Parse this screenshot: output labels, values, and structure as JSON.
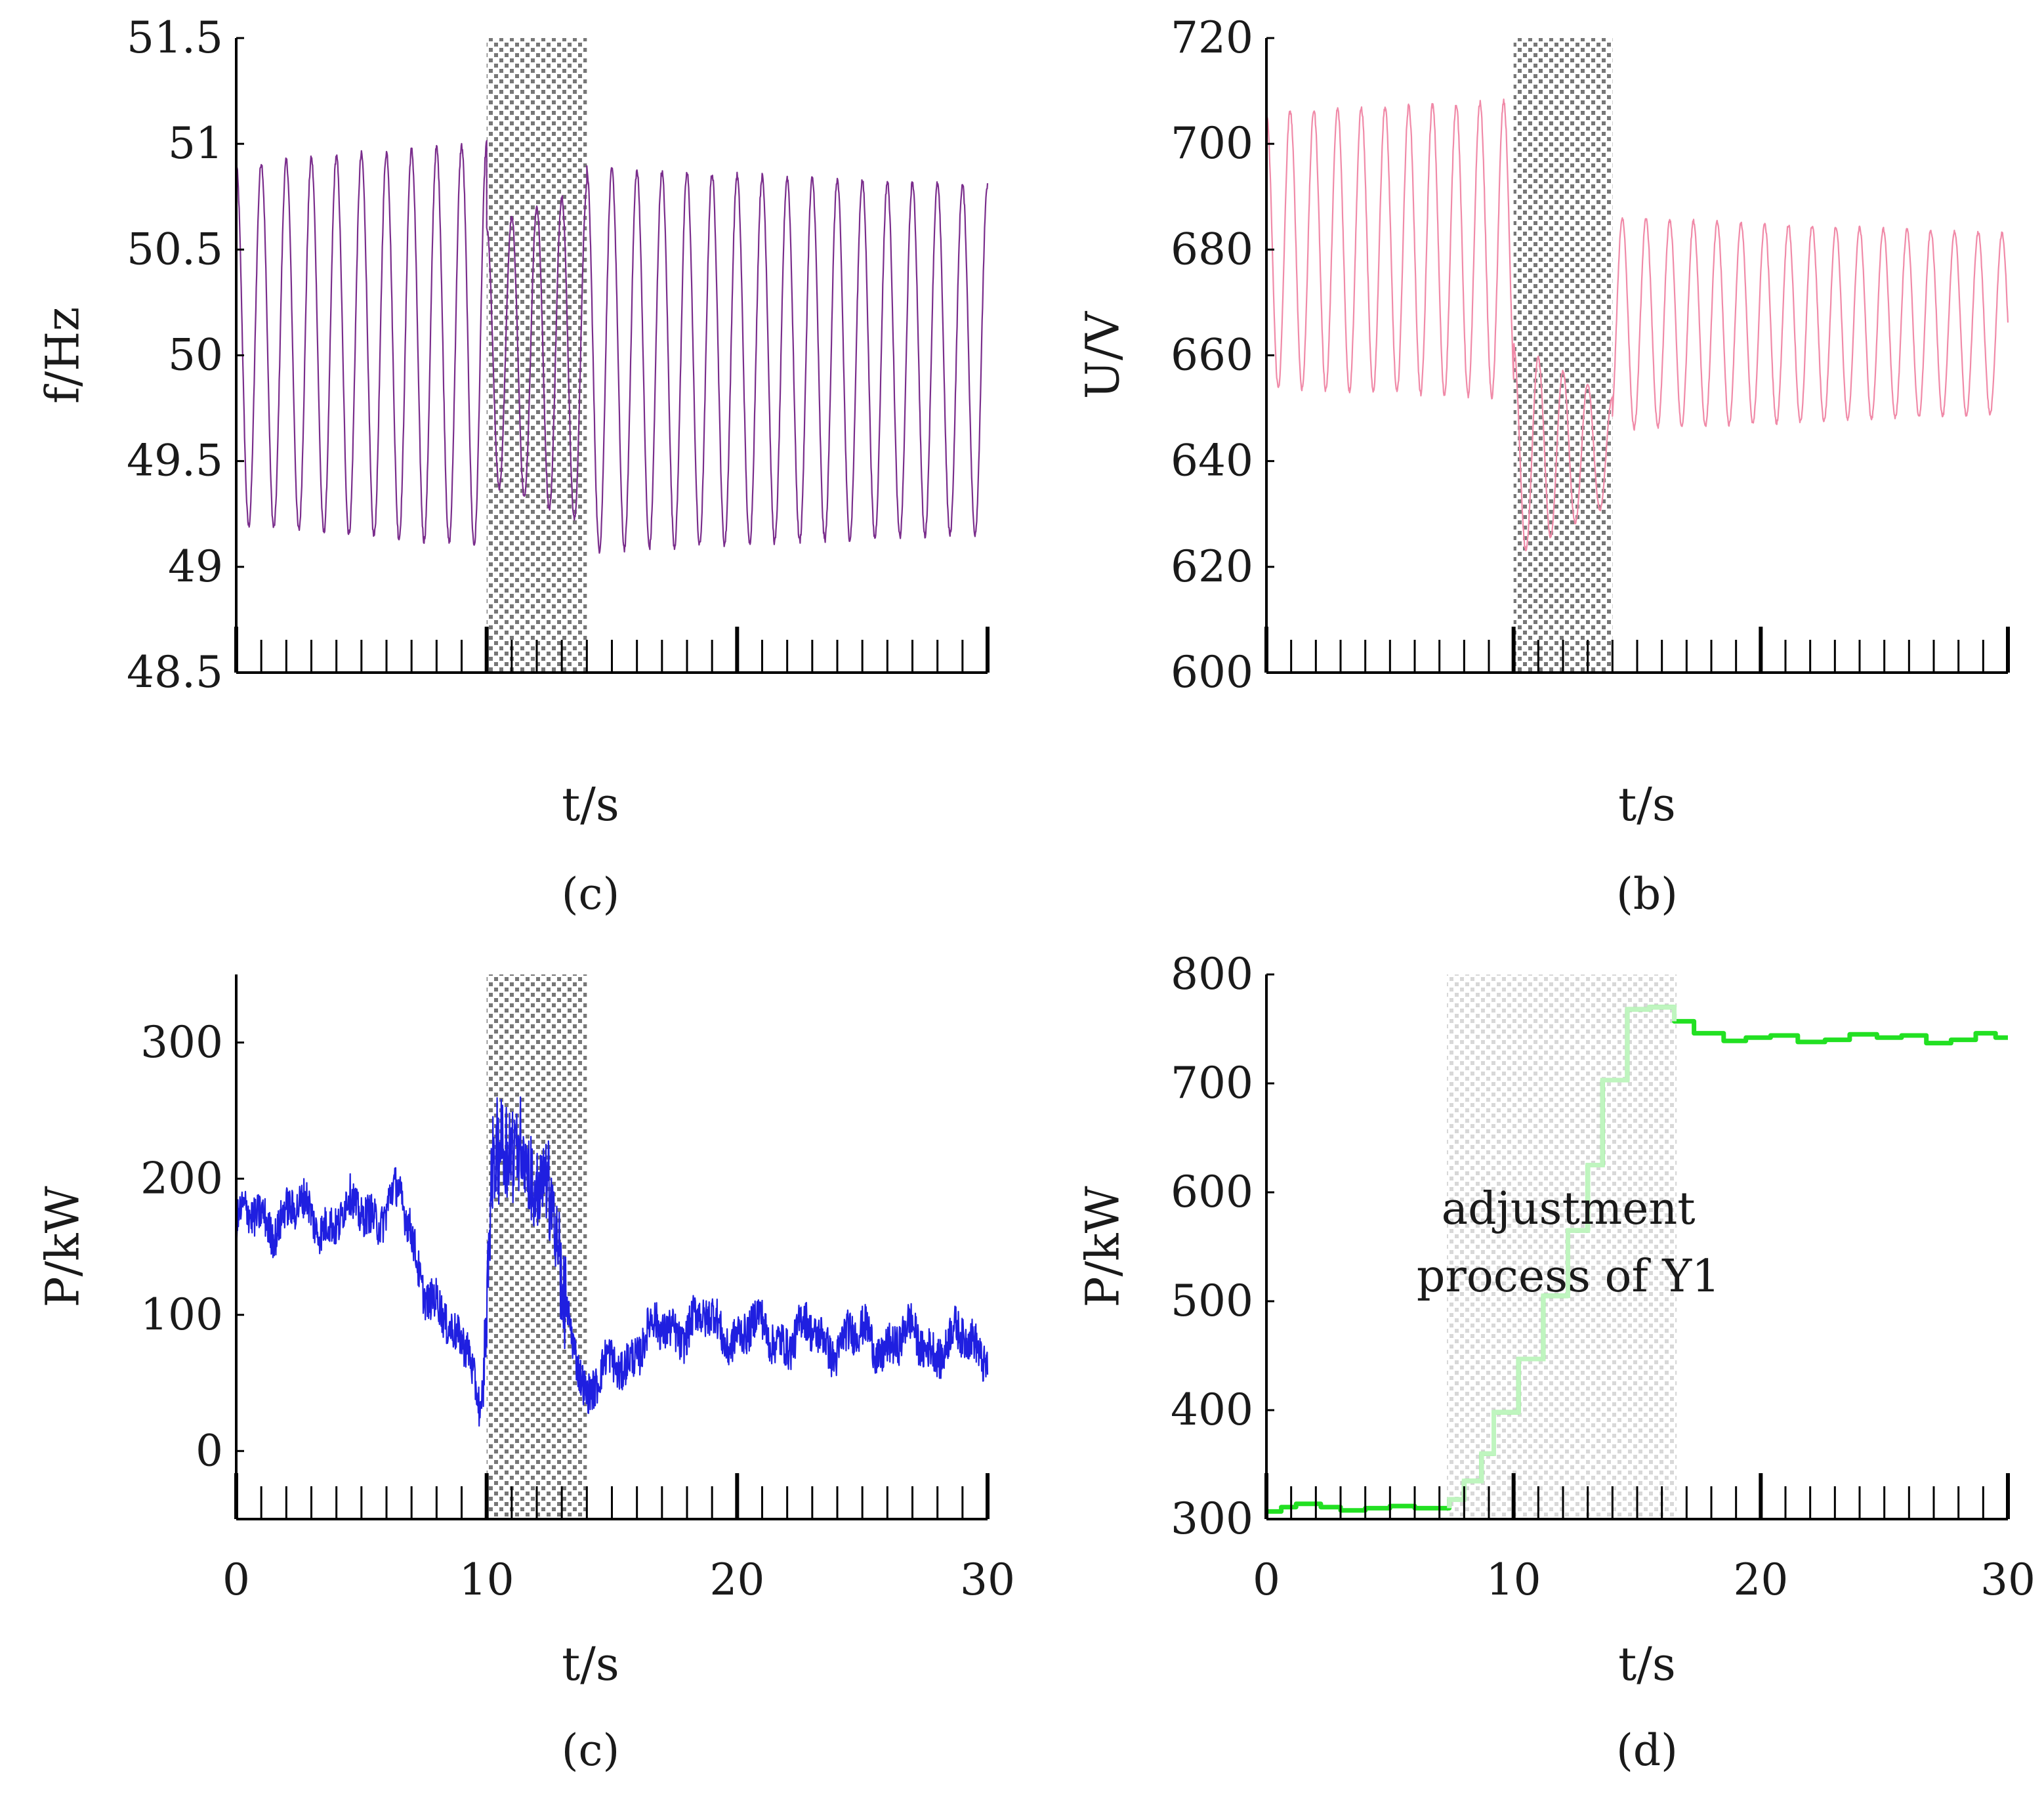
{
  "chart_data": [
    {
      "id": "a",
      "type": "line",
      "caption": "(c)",
      "xlabel": "t/s",
      "ylabel": "f/Hz",
      "xlim": [
        0,
        30
      ],
      "ylim": [
        48.5,
        51.5
      ],
      "yticks": [
        "48.5",
        "49",
        "49.5",
        "50",
        "50.5",
        "51",
        "51.5"
      ],
      "xticks": [],
      "shade": [
        10,
        14
      ],
      "color": "#7a2d8c",
      "series": [
        {
          "name": "frequency",
          "segments": [
            {
              "t0": 0,
              "t1": 10,
              "center": 50.05,
              "amp": [
                0.85,
                0.95
              ],
              "period": 1.0
            },
            {
              "t0": 10,
              "t1": 14,
              "center": 50.0,
              "amp": [
                0.6,
                0.8
              ],
              "period": 1.0
            },
            {
              "t0": 14,
              "t1": 30,
              "center": 49.98,
              "amp": [
                0.9,
                0.82
              ],
              "period": 1.0
            }
          ]
        }
      ]
    },
    {
      "id": "b",
      "type": "line",
      "caption": "(b)",
      "xlabel": "t/s",
      "ylabel": "U/V",
      "xlim": [
        0,
        30
      ],
      "ylim": [
        600,
        720
      ],
      "yticks": [
        "600",
        "620",
        "640",
        "660",
        "680",
        "700",
        "720"
      ],
      "xticks": [],
      "shade": [
        10,
        14
      ],
      "color": "#f08aa8",
      "series": [
        {
          "name": "voltage",
          "segments": [
            {
              "t0": 0,
              "t1": 10,
              "center": 680,
              "amp": [
                26,
                28
              ],
              "period": 0.96
            },
            {
              "t0": 10,
              "t1": 14,
              "center": 642,
              "amp": [
                20,
                10
              ],
              "period": 1.0
            },
            {
              "t0": 14,
              "t1": 30,
              "center": 666,
              "amp": [
                20,
                17
              ],
              "period": 0.96
            }
          ]
        }
      ]
    },
    {
      "id": "c",
      "type": "line",
      "caption": "(c)",
      "xlabel": "t/s",
      "ylabel": "P/kW",
      "xlim": [
        0,
        30
      ],
      "ylim": [
        -50,
        350
      ],
      "yticks": [
        "0",
        "100",
        "200",
        "300"
      ],
      "ytick_values": [
        0,
        100,
        200,
        300
      ],
      "xticks": [
        "0",
        "10",
        "20",
        "30"
      ],
      "xtick_values": [
        0,
        10,
        20,
        30
      ],
      "shade": [
        10,
        14
      ],
      "color": "#1f1fe0",
      "series": [
        {
          "name": "power",
          "anchors": [
            [
              0,
              165
            ],
            [
              2,
              175
            ],
            [
              4,
              170
            ],
            [
              6,
              180
            ],
            [
              6.5,
              185
            ],
            [
              7.2,
              140
            ],
            [
              8,
              110
            ],
            [
              8.8,
              70
            ],
            [
              9.3,
              85
            ],
            [
              9.8,
              25
            ],
            [
              10.2,
              205
            ],
            [
              10.8,
              215
            ],
            [
              11.4,
              230
            ],
            [
              12,
              195
            ],
            [
              12.6,
              180
            ],
            [
              13,
              110
            ],
            [
              13.5,
              90
            ],
            [
              14,
              40
            ],
            [
              15,
              60
            ],
            [
              16,
              78
            ],
            [
              18,
              95
            ],
            [
              20,
              88
            ],
            [
              24,
              82
            ],
            [
              30,
              78
            ]
          ],
          "noise": 15
        }
      ]
    },
    {
      "id": "d",
      "type": "line",
      "caption": "(d)",
      "xlabel": "t/s",
      "ylabel": "P/kW",
      "xlim": [
        0,
        30
      ],
      "ylim": [
        300,
        800
      ],
      "yticks": [
        "300",
        "400",
        "500",
        "600",
        "700",
        "800"
      ],
      "ytick_values": [
        300,
        400,
        500,
        600,
        700,
        800
      ],
      "xticks": [
        "0",
        "10",
        "20",
        "30"
      ],
      "xtick_values": [
        0,
        10,
        20,
        30
      ],
      "shade": [
        7.3,
        16.6
      ],
      "color": "#22e022",
      "annotation": [
        "adjustment",
        "process of Y1"
      ],
      "series": [
        {
          "name": "power",
          "steps": [
            [
              0,
              307
            ],
            [
              0.6,
              311
            ],
            [
              1.2,
              314
            ],
            [
              2.2,
              311
            ],
            [
              3.0,
              308
            ],
            [
              4.0,
              310
            ],
            [
              5.0,
              312
            ],
            [
              6.0,
              310
            ],
            [
              7.4,
              318
            ],
            [
              8.0,
              335
            ],
            [
              8.7,
              360
            ],
            [
              9.2,
              398
            ],
            [
              10.2,
              447
            ],
            [
              11.2,
              505
            ],
            [
              12.2,
              565
            ],
            [
              13.0,
              625
            ],
            [
              13.6,
              703
            ],
            [
              14.6,
              768
            ],
            [
              15.5,
              770
            ],
            [
              16.5,
              757
            ],
            [
              17.3,
              746
            ],
            [
              18.5,
              739
            ],
            [
              19.4,
              742
            ],
            [
              20.4,
              744
            ],
            [
              21.5,
              738
            ],
            [
              22.6,
              740
            ],
            [
              23.6,
              745
            ],
            [
              24.7,
              742
            ],
            [
              25.7,
              744
            ],
            [
              26.7,
              737
            ],
            [
              27.7,
              740
            ],
            [
              28.7,
              746
            ],
            [
              29.5,
              742
            ]
          ]
        }
      ]
    }
  ]
}
